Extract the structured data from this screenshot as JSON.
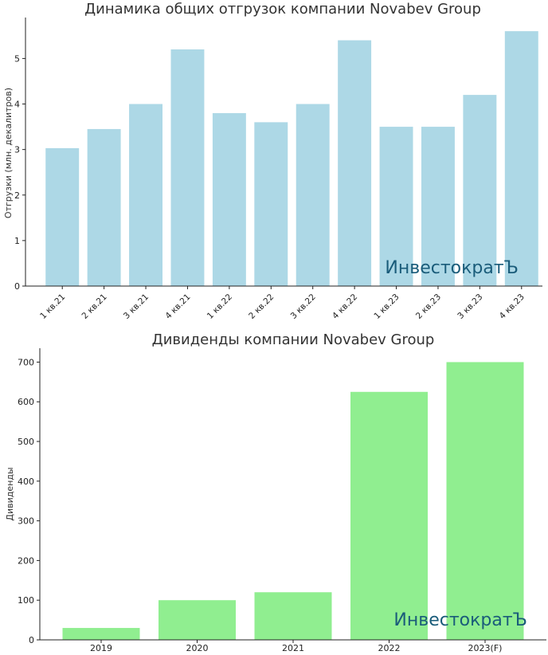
{
  "watermark": "ИнвестократЪ",
  "colors": {
    "shipments_bar": "#add8e6",
    "dividends_bar": "#90ee90",
    "watermark": "#1a5c7a",
    "text": "#333333"
  },
  "chart_data": [
    {
      "type": "bar",
      "title": "Динамика общих отгрузок компании Novabev Group",
      "xlabel": "",
      "ylabel": "Отгрузки (млн. декалитров)",
      "categories": [
        "1 кв.21",
        "2 кв.21",
        "3 кв.21",
        "4 кв.21",
        "1 кв.22",
        "2 кв.22",
        "3 кв.22",
        "4 кв.22",
        "1 кв.23",
        "2 кв.23",
        "3 кв.23",
        "4 кв.23"
      ],
      "values": [
        3.03,
        3.45,
        4.0,
        5.2,
        3.8,
        3.6,
        4.0,
        5.4,
        3.5,
        3.5,
        4.2,
        5.6
      ],
      "ylim": [
        0,
        5.9
      ],
      "yticks": [
        0,
        1,
        2,
        3,
        4,
        5
      ],
      "grid": false,
      "legend": "none"
    },
    {
      "type": "bar",
      "title": "Дивиденды компании Novabev Group",
      "xlabel": "",
      "ylabel": "Дивиденды",
      "categories": [
        "2019",
        "2020",
        "2021",
        "2022",
        "2023(F)"
      ],
      "values": [
        30,
        100,
        120,
        625,
        700
      ],
      "ylim": [
        0,
        735
      ],
      "yticks": [
        0,
        100,
        200,
        300,
        400,
        500,
        600,
        700
      ],
      "grid": false,
      "legend": "none"
    }
  ]
}
